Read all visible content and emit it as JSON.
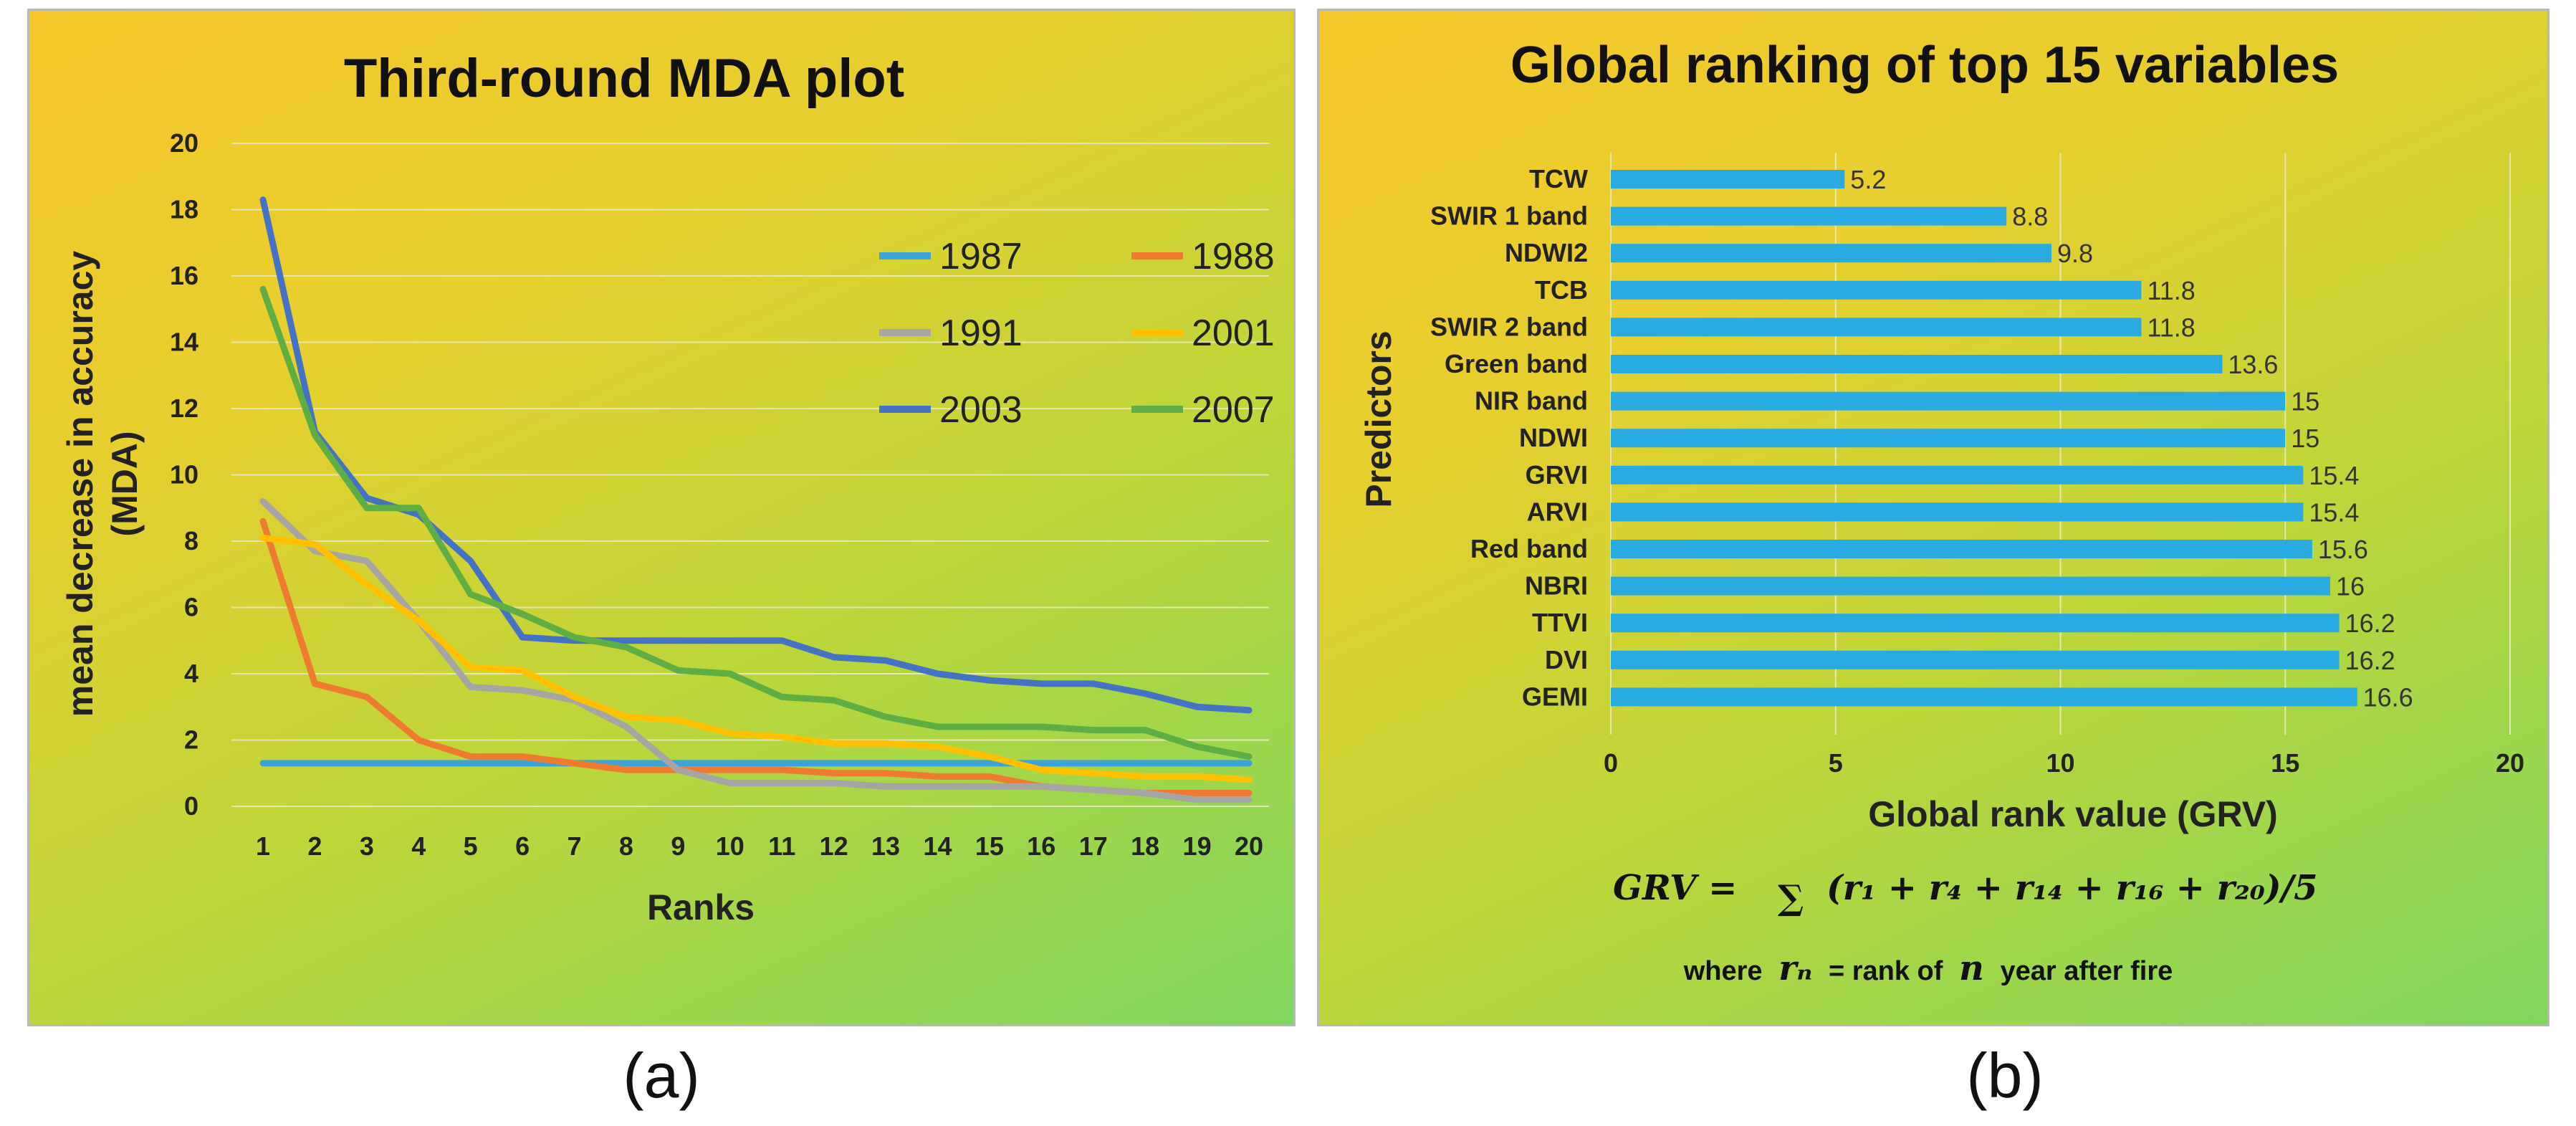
{
  "colors": {
    "1987": "#3ba3d8",
    "1988": "#ef7b31",
    "1991": "#a5a5a5",
    "2001": "#ffc000",
    "2003": "#4472c4",
    "2007": "#5eae44",
    "bar": "#29abe2",
    "grid": "#e6e6b4"
  },
  "chart_data": [
    {
      "type": "line",
      "title": "Third-round MDA plot",
      "xlabel": "Ranks",
      "ylabel": "mean decrease in accuracy (MDA)",
      "ylabel_lines": [
        "mean decrease in accuracy",
        "(MDA)"
      ],
      "x": [
        1,
        2,
        3,
        4,
        5,
        6,
        7,
        8,
        9,
        10,
        11,
        12,
        13,
        14,
        15,
        16,
        17,
        18,
        19,
        20
      ],
      "xticks": [
        "1",
        "2",
        "3",
        "4",
        "5",
        "6",
        "7",
        "8",
        "9",
        "10",
        "11",
        "12",
        "13",
        "14",
        "15",
        "16",
        "17",
        "18",
        "19",
        "20"
      ],
      "ylim": [
        0,
        20
      ],
      "yticks": [
        "0",
        "2",
        "4",
        "6",
        "8",
        "10",
        "12",
        "14",
        "16",
        "18",
        "20"
      ],
      "grid": true,
      "legend_position": "top-right",
      "series": [
        {
          "name": "1987",
          "values": [
            1.3,
            1.3,
            1.3,
            1.3,
            1.3,
            1.3,
            1.3,
            1.3,
            1.3,
            1.3,
            1.3,
            1.3,
            1.3,
            1.3,
            1.3,
            1.3,
            1.3,
            1.3,
            1.3,
            1.3
          ]
        },
        {
          "name": "1988",
          "values": [
            8.6,
            3.7,
            3.3,
            2.0,
            1.5,
            1.5,
            1.3,
            1.1,
            1.1,
            1.1,
            1.1,
            1.0,
            1.0,
            0.9,
            0.9,
            0.6,
            0.5,
            0.4,
            0.4,
            0.4
          ]
        },
        {
          "name": "1991",
          "values": [
            9.2,
            7.7,
            7.4,
            5.6,
            3.6,
            3.5,
            3.2,
            2.4,
            1.1,
            0.7,
            0.7,
            0.7,
            0.6,
            0.6,
            0.6,
            0.6,
            0.5,
            0.4,
            0.2,
            0.2
          ]
        },
        {
          "name": "2001",
          "values": [
            8.1,
            7.9,
            6.7,
            5.6,
            4.2,
            4.1,
            3.3,
            2.7,
            2.6,
            2.2,
            2.1,
            1.9,
            1.9,
            1.8,
            1.5,
            1.1,
            1.0,
            0.9,
            0.9,
            0.8
          ]
        },
        {
          "name": "2003",
          "values": [
            18.3,
            11.3,
            9.3,
            8.8,
            7.4,
            5.1,
            5.0,
            5.0,
            5.0,
            5.0,
            5.0,
            4.5,
            4.4,
            4.0,
            3.8,
            3.7,
            3.7,
            3.4,
            3.0,
            2.9
          ]
        },
        {
          "name": "2007",
          "values": [
            15.6,
            11.2,
            9.0,
            9.0,
            6.4,
            5.8,
            5.1,
            4.8,
            4.1,
            4.0,
            3.3,
            3.2,
            2.7,
            2.4,
            2.4,
            2.4,
            2.3,
            2.3,
            1.8,
            1.5
          ]
        }
      ]
    },
    {
      "type": "bar",
      "orientation": "horizontal",
      "title": "Global ranking of top 15 variables",
      "xlabel": "Global rank value (GRV)",
      "ylabel": "Predictors",
      "categories": [
        "TCW",
        "SWIR 1 band",
        "NDWI2",
        "TCB",
        "SWIR 2 band",
        "Green band",
        "NIR band",
        "NDWI",
        "GRVI",
        "ARVI",
        "Red band",
        "NBRI",
        "TTVI",
        "DVI",
        "GEMI"
      ],
      "values": [
        5.2,
        8.8,
        9.8,
        11.8,
        11.8,
        13.6,
        15,
        15,
        15.4,
        15.4,
        15.6,
        16,
        16.2,
        16.2,
        16.6
      ],
      "value_labels": [
        "5.2",
        "8.8",
        "9.8",
        "11.8",
        "11.8",
        "13.6",
        "15",
        "15",
        "15.4",
        "15.4",
        "15.6",
        "16",
        "16.2",
        "16.2",
        "16.6"
      ],
      "xlim": [
        0,
        20
      ],
      "xticks": [
        "0",
        "5",
        "10",
        "15",
        "20"
      ],
      "grid": true
    }
  ],
  "formula": {
    "lhs": "GRV =",
    "sum": "∑",
    "rhs": "(r₁ + r₄ + r₁₄ + r₁₆ + r₂₀)/5",
    "note_prefix": "where",
    "note_var": "rₙ",
    "note_mid": "= rank of",
    "note_n": "n",
    "note_suffix": "year after fire"
  },
  "captions": {
    "a": "(a)",
    "b": "(b)"
  }
}
